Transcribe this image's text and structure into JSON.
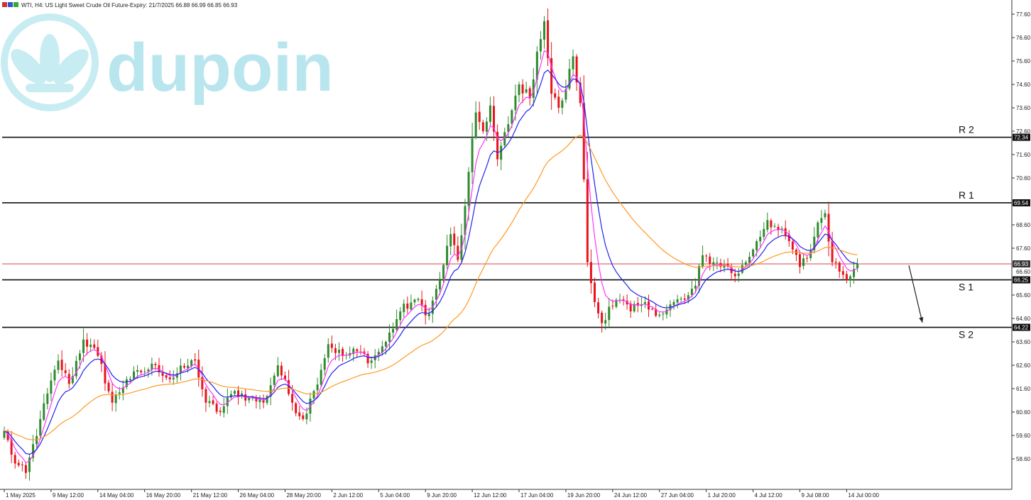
{
  "header": {
    "symbol_line": "WTI, H4:  US Light Sweet Crude Oil Future-Expiry: 21/7/2025  66.88 66.99 66.85 66.93"
  },
  "watermark": {
    "text": "dupoin",
    "color": "#b9e6ee",
    "icon": "lotus-logo-icon"
  },
  "colors": {
    "bull": "#2e8b2e",
    "bear": "#e8141b",
    "ma_fast": "#ff33ff",
    "ma_mid": "#2222ee",
    "ma_slow": "#ff9922",
    "level_line": "#111111",
    "current_line": "#e8a0a0"
  },
  "chart_data": {
    "type": "candlestick",
    "title": "",
    "xlabel": "",
    "ylabel": "",
    "ylim": [
      57.6,
      78.0
    ],
    "y_ticks": [
      77.6,
      76.6,
      75.6,
      74.6,
      73.6,
      72.6,
      71.6,
      70.6,
      68.6,
      67.6,
      65.6,
      64.6,
      63.6,
      62.6,
      61.6,
      60.6,
      59.6,
      58.6
    ],
    "x_ticks": [
      {
        "i": 0,
        "label": "1 May 2025"
      },
      {
        "i": 13,
        "label": "9 May 12:00"
      },
      {
        "i": 26,
        "label": "14 May 04:00"
      },
      {
        "i": 39,
        "label": "16 May 20:00"
      },
      {
        "i": 52,
        "label": "21 May 12:00"
      },
      {
        "i": 65,
        "label": "26 May 04:00"
      },
      {
        "i": 78,
        "label": "28 May 20:00"
      },
      {
        "i": 91,
        "label": "2 Jun 12:00"
      },
      {
        "i": 104,
        "label": "5 Jun 04:00"
      },
      {
        "i": 117,
        "label": "9 Jun 20:00"
      },
      {
        "i": 130,
        "label": "12 Jun 12:00"
      },
      {
        "i": 143,
        "label": "17 Jun 04:00"
      },
      {
        "i": 156,
        "label": "19 Jun 20:00"
      },
      {
        "i": 169,
        "label": "24 Jun 12:00"
      },
      {
        "i": 182,
        "label": "27 Jun 04:00"
      },
      {
        "i": 195,
        "label": "1 Jul 20:00"
      },
      {
        "i": 208,
        "label": "4 Jul 12:00"
      },
      {
        "i": 221,
        "label": "9 Jul 08:00"
      },
      {
        "i": 234,
        "label": "14 Jul 00:00"
      }
    ],
    "close_anchors": [
      [
        0,
        59.8
      ],
      [
        3,
        58.4
      ],
      [
        6,
        58.0
      ],
      [
        10,
        60.3
      ],
      [
        15,
        62.8
      ],
      [
        18,
        61.8
      ],
      [
        22,
        63.7
      ],
      [
        26,
        63.0
      ],
      [
        30,
        61.0
      ],
      [
        34,
        62.0
      ],
      [
        38,
        62.3
      ],
      [
        42,
        62.6
      ],
      [
        46,
        62.0
      ],
      [
        50,
        62.5
      ],
      [
        53,
        62.8
      ],
      [
        56,
        61.0
      ],
      [
        60,
        60.6
      ],
      [
        64,
        61.5
      ],
      [
        68,
        61.2
      ],
      [
        72,
        61.0
      ],
      [
        76,
        62.6
      ],
      [
        80,
        61.0
      ],
      [
        83,
        60.3
      ],
      [
        86,
        61.5
      ],
      [
        90,
        63.5
      ],
      [
        94,
        63.0
      ],
      [
        98,
        63.2
      ],
      [
        102,
        62.8
      ],
      [
        106,
        63.6
      ],
      [
        110,
        64.9
      ],
      [
        114,
        65.4
      ],
      [
        118,
        64.8
      ],
      [
        121,
        66.3
      ],
      [
        124,
        68.2
      ],
      [
        126,
        67.1
      ],
      [
        128,
        69.4
      ],
      [
        131,
        73.4
      ],
      [
        133,
        72.6
      ],
      [
        135,
        73.7
      ],
      [
        137,
        71.4
      ],
      [
        140,
        72.9
      ],
      [
        143,
        74.6
      ],
      [
        146,
        74.0
      ],
      [
        148,
        76.0
      ],
      [
        150,
        77.3
      ],
      [
        152,
        74.2
      ],
      [
        154,
        73.6
      ],
      [
        156,
        74.4
      ],
      [
        158,
        75.8
      ],
      [
        160,
        73.8
      ],
      [
        162,
        67.0
      ],
      [
        164,
        65.3
      ],
      [
        166,
        64.4
      ],
      [
        168,
        65.1
      ],
      [
        171,
        65.4
      ],
      [
        174,
        64.9
      ],
      [
        177,
        65.2
      ],
      [
        180,
        65.0
      ],
      [
        183,
        64.8
      ],
      [
        186,
        65.3
      ],
      [
        189,
        65.4
      ],
      [
        192,
        66.0
      ],
      [
        194,
        67.3
      ],
      [
        197,
        67.0
      ],
      [
        200,
        66.9
      ],
      [
        203,
        66.4
      ],
      [
        206,
        67.0
      ],
      [
        209,
        67.9
      ],
      [
        212,
        68.8
      ],
      [
        215,
        68.4
      ],
      [
        218,
        67.9
      ],
      [
        221,
        66.8
      ],
      [
        224,
        67.5
      ],
      [
        226,
        68.7
      ],
      [
        228,
        69.1
      ],
      [
        230,
        67.0
      ],
      [
        232,
        66.6
      ],
      [
        235,
        66.4
      ],
      [
        237,
        66.93
      ]
    ],
    "candle_count": 238,
    "series": [
      {
        "period": 5,
        "color": "#ff33ff"
      },
      {
        "period": 10,
        "color": "#2222ee"
      },
      {
        "period": 40,
        "color": "#ff9922"
      }
    ],
    "levels": [
      {
        "name": "R 2",
        "price": "72.34",
        "value": 72.34
      },
      {
        "name": "R 1",
        "price": "69.54",
        "value": 69.54
      },
      {
        "name": "S 1",
        "price": "66.25",
        "value": 66.25
      },
      {
        "name": "S 2",
        "price": "64.22",
        "value": 64.22
      }
    ],
    "current": {
      "price": "66.93",
      "value": 66.93
    },
    "ask_tick": {
      "price": "66.60",
      "value": 66.6
    },
    "forecast_arrow": {
      "from_value": 66.93,
      "to_value": 64.3
    }
  }
}
